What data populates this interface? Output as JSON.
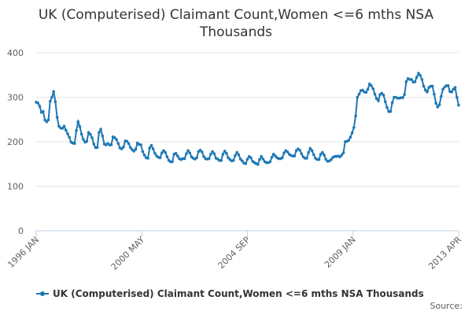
{
  "chart_data": {
    "type": "line",
    "title_lines": [
      "UK (Computerised) Claimant Count,Women <=6 mths NSA",
      "Thousands"
    ],
    "xlabel": "",
    "ylabel": "",
    "ylim": [
      0,
      400
    ],
    "y_ticks": [
      "0",
      "100",
      "200",
      "300",
      "400"
    ],
    "x_tick_labels": [
      "1996 JAN",
      "2000 MAY",
      "2004 SEP",
      "2009 JAN",
      "2013 APR"
    ],
    "grid": true,
    "legend_position": "bottom",
    "series": [
      {
        "name": "UK (Computerised) Claimant Count,Women <=6 mths NSA Thousands",
        "color": "#1f78b4",
        "values": [
          289,
          287,
          280,
          266,
          268,
          249,
          245,
          249,
          291,
          300,
          313,
          290,
          255,
          235,
          231,
          230,
          235,
          226,
          218,
          210,
          199,
          197,
          196,
          225,
          245,
          234,
          217,
          205,
          199,
          201,
          221,
          217,
          209,
          195,
          187,
          187,
          221,
          228,
          213,
          195,
          193,
          196,
          193,
          193,
          211,
          209,
          205,
          196,
          186,
          184,
          188,
          202,
          201,
          196,
          187,
          182,
          179,
          183,
          197,
          194,
          193,
          178,
          170,
          164,
          163,
          186,
          192,
          184,
          174,
          168,
          165,
          164,
          175,
          180,
          176,
          166,
          158,
          155,
          155,
          172,
          174,
          168,
          162,
          160,
          162,
          162,
          173,
          180,
          175,
          166,
          163,
          161,
          164,
          178,
          181,
          177,
          167,
          162,
          161,
          162,
          172,
          178,
          173,
          163,
          161,
          158,
          158,
          172,
          179,
          174,
          164,
          160,
          157,
          158,
          169,
          176,
          171,
          161,
          157,
          152,
          151,
          161,
          167,
          164,
          156,
          153,
          151,
          149,
          160,
          167,
          161,
          155,
          153,
          153,
          155,
          165,
          172,
          168,
          164,
          162,
          162,
          164,
          175,
          180,
          177,
          172,
          169,
          168,
          168,
          180,
          184,
          181,
          173,
          166,
          163,
          163,
          176,
          185,
          180,
          171,
          163,
          160,
          160,
          172,
          176,
          170,
          160,
          156,
          157,
          160,
          165,
          167,
          167,
          168,
          166,
          170,
          175,
          200,
          201,
          203,
          210,
          220,
          232,
          258,
          300,
          307,
          315,
          316,
          312,
          311,
          318,
          330,
          326,
          319,
          307,
          297,
          292,
          306,
          309,
          305,
          290,
          277,
          268,
          268,
          288,
          300,
          300,
          298,
          298,
          299,
          299,
          306,
          335,
          342,
          340,
          340,
          334,
          335,
          345,
          354,
          349,
          340,
          325,
          316,
          312,
          322,
          325,
          325,
          307,
          287,
          278,
          283,
          302,
          318,
          323,
          326,
          326,
          313,
          312,
          318,
          322,
          300,
          282
        ]
      }
    ]
  },
  "legend": {
    "label": "UK (Computerised) Claimant Count,Women <=6 mths NSA Thousands"
  },
  "credits": {
    "text": "Source:"
  }
}
